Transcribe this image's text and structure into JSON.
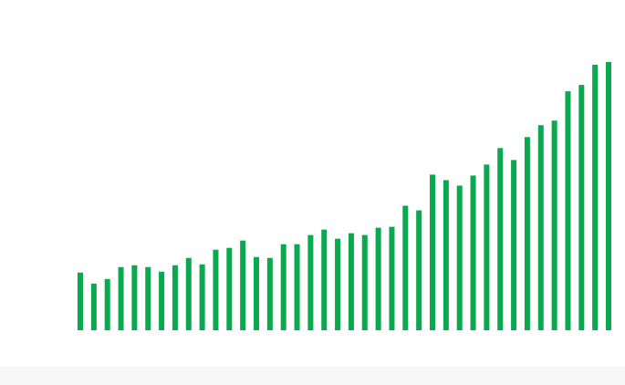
{
  "chart_data": {
    "type": "bar",
    "values": [
      63,
      51,
      56,
      69,
      71,
      69,
      64,
      71,
      79,
      72,
      88,
      90,
      98,
      80,
      79,
      94,
      94,
      104,
      110,
      100,
      106,
      104,
      112,
      113,
      136,
      131,
      170,
      164,
      158,
      169,
      181,
      199,
      186,
      211,
      224,
      229,
      261,
      268,
      290,
      293
    ],
    "ylim": [
      0,
      293
    ],
    "grid": false,
    "legend": "none",
    "bar_color": "#0aa84f"
  }
}
